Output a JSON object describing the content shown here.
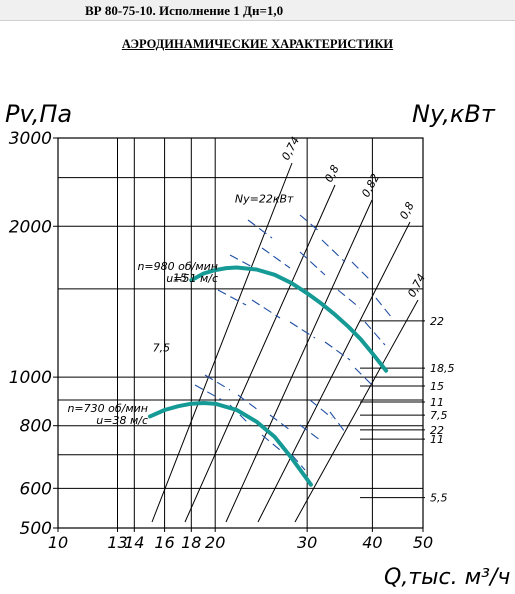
{
  "header": {
    "title": "ВР 80-75-10. Исполнение 1 Дн=1,0"
  },
  "page": {
    "subtitle": "АЭРОДИНАМИЧЕСКИЕ ХАРАКТЕРИСТИКИ"
  },
  "colors": {
    "curve": "#159a95",
    "efficiency": "#1f4ea3",
    "grid": "#000000"
  },
  "chart_data": {
    "type": "line",
    "ylabel": "Pv,Па",
    "y2label": "Ny,кВт",
    "xlabel": "Q,тыс. м³/ч",
    "xscale": "log",
    "yscale": "log",
    "xlim": [
      10,
      50
    ],
    "ylim": [
      500,
      3000
    ],
    "x_ticks": [
      10,
      13,
      14,
      16,
      18,
      20,
      30,
      40,
      50
    ],
    "y_ticks": [
      500,
      600,
      800,
      1000,
      2000,
      3000
    ],
    "y_tick_labels": [
      "500",
      "600",
      "800",
      "1000",
      "2000",
      "3000"
    ],
    "series": [
      {
        "name": "n=980 об/мин",
        "label_lines": [
          "n=980 об/мин",
          "u=51 м/с"
        ],
        "x": [
          18,
          19,
          20,
          21,
          22,
          24,
          26,
          28,
          30,
          32,
          34,
          36,
          38,
          40,
          42.5
        ],
        "y": [
          1560,
          1610,
          1635,
          1650,
          1655,
          1640,
          1600,
          1540,
          1470,
          1400,
          1330,
          1260,
          1190,
          1115,
          1030
        ]
      },
      {
        "name": "n=730 об/мин",
        "label_lines": [
          "n=730 об/мин",
          "u=38 м/с"
        ],
        "x": [
          15,
          16,
          17,
          18,
          19,
          20,
          22,
          24,
          26,
          28,
          30,
          30.5
        ],
        "y": [
          835,
          860,
          875,
          885,
          888,
          885,
          860,
          815,
          760,
          690,
          625,
          610
        ]
      }
    ],
    "efficiency_labels": [
      "0,74",
      "0,8",
      "0,82",
      "0,8",
      "0,74"
    ],
    "power_ticks": [
      {
        "label": "22",
        "y": 1295
      },
      {
        "label": "18,5",
        "y": 1042
      },
      {
        "label": "15",
        "y": 960
      },
      {
        "label": "11",
        "y": 892
      },
      {
        "label": "7,5",
        "y": 840
      },
      {
        "label": "22",
        "y": 785
      },
      {
        "label": "11",
        "y": 752
      },
      {
        "label": "5,5",
        "y": 575
      }
    ],
    "power_annotations": [
      {
        "label": "Ny=22кВт",
        "x": 23,
        "y": 2200
      },
      {
        "label": "15",
        "x": 17.5,
        "y": 1530
      },
      {
        "label": "7,5",
        "x": 16,
        "y": 1110
      }
    ]
  }
}
